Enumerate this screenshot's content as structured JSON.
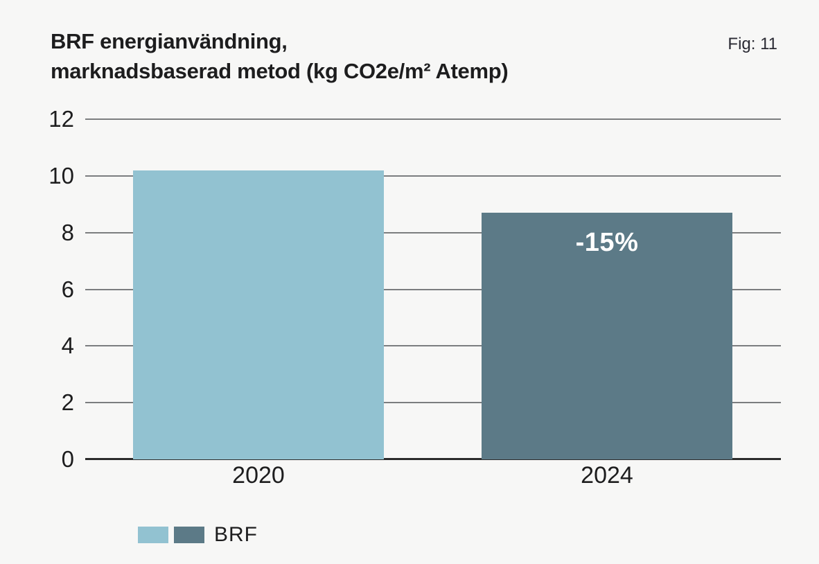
{
  "header": {
    "title_line1": "BRF energianvändning,",
    "title_line2": "marknadsbaserad metod (kg CO2e/m² Atemp)",
    "fig_label": "Fig: 11"
  },
  "legend": {
    "label": "BRF"
  },
  "colors": {
    "background": "#f7f7f6",
    "bar_2020": "#92c2d1",
    "bar_2024": "#5c7a87",
    "gridline": "#7b7d7f",
    "axis": "#2b2b2b",
    "text": "#1d1d1e",
    "annotation_text": "#ffffff"
  },
  "chart_data": {
    "type": "bar",
    "title": "BRF energianvändning, marknadsbaserad metod (kg CO2e/m² Atemp)",
    "fig": "Fig: 11",
    "categories": [
      "2020",
      "2024"
    ],
    "values": [
      10.2,
      8.7
    ],
    "bar_colors": [
      "#92c2d1",
      "#5c7a87"
    ],
    "bar_annotations": [
      "",
      "-15%"
    ],
    "xlabel": "",
    "ylabel": "",
    "ylim": [
      0,
      12
    ],
    "y_ticks": [
      0,
      2,
      4,
      6,
      8,
      10,
      12
    ],
    "grid": true,
    "legend": {
      "position": "bottom-left",
      "entries": [
        {
          "label": "BRF",
          "swatch_colors": [
            "#92c2d1",
            "#5c7a87"
          ]
        }
      ]
    }
  }
}
